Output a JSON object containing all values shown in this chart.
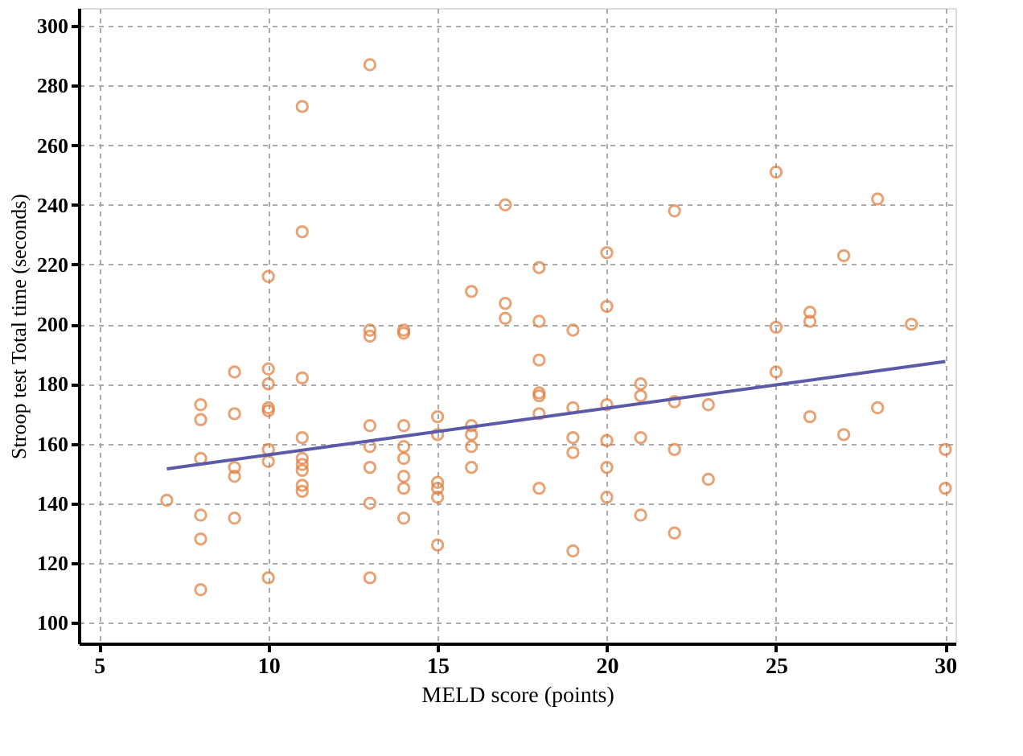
{
  "chart_data": {
    "type": "scatter",
    "xlabel": "MELD score (points)",
    "ylabel": "Stroop test Total time (seconds)",
    "xlim": [
      4.4,
      30.3
    ],
    "ylim": [
      93,
      306
    ],
    "xticks": [
      5,
      10,
      15,
      20,
      25,
      30
    ],
    "yticks": [
      100,
      120,
      140,
      160,
      180,
      200,
      220,
      240,
      260,
      280,
      300
    ],
    "grid": true,
    "marker": "circle",
    "series": [
      {
        "color": "#e07b39",
        "x": [
          7,
          8,
          8,
          8,
          8,
          8,
          8,
          9,
          9,
          9,
          9,
          9,
          10,
          10,
          10,
          10,
          10,
          10,
          10,
          10,
          11,
          11,
          11,
          11,
          11,
          11,
          11,
          11,
          11,
          13,
          13,
          13,
          13,
          13,
          13,
          13,
          13,
          14,
          14,
          14,
          14,
          14,
          14,
          14,
          14,
          15,
          15,
          15,
          15,
          15,
          15,
          16,
          16,
          16,
          16,
          16,
          17,
          17,
          17,
          18,
          18,
          18,
          18,
          18,
          18,
          18,
          19,
          19,
          19,
          19,
          19,
          20,
          20,
          20,
          20,
          20,
          20,
          21,
          21,
          21,
          21,
          22,
          22,
          22,
          22,
          23,
          23,
          25,
          25,
          25,
          26,
          26,
          26,
          27,
          27,
          28,
          28,
          29,
          30,
          30
        ],
        "values": [
          141,
          173,
          168,
          155,
          136,
          128,
          111,
          184,
          170,
          152,
          149,
          135,
          216,
          185,
          180,
          172,
          171,
          158,
          154,
          115,
          273,
          231,
          182,
          162,
          155,
          153,
          151,
          146,
          144,
          287,
          198,
          196,
          166,
          159,
          152,
          140,
          115,
          198,
          197,
          166,
          159,
          155,
          149,
          145,
          135,
          169,
          163,
          147,
          145,
          142,
          126,
          211,
          166,
          163,
          159,
          152,
          240,
          207,
          202,
          219,
          201,
          188,
          177,
          176,
          170,
          145,
          198,
          172,
          162,
          157,
          124,
          224,
          206,
          173,
          161,
          152,
          142,
          180,
          176,
          162,
          136,
          238,
          174,
          158,
          130,
          173,
          148,
          251,
          199,
          184,
          204,
          201,
          169,
          223,
          163,
          242,
          172,
          200,
          158,
          145
        ]
      },
      {
        "type": "line",
        "color": "#5a5aa8",
        "marker": "none",
        "x": [
          7,
          30
        ],
        "values": [
          151.5,
          187.5
        ]
      }
    ]
  }
}
